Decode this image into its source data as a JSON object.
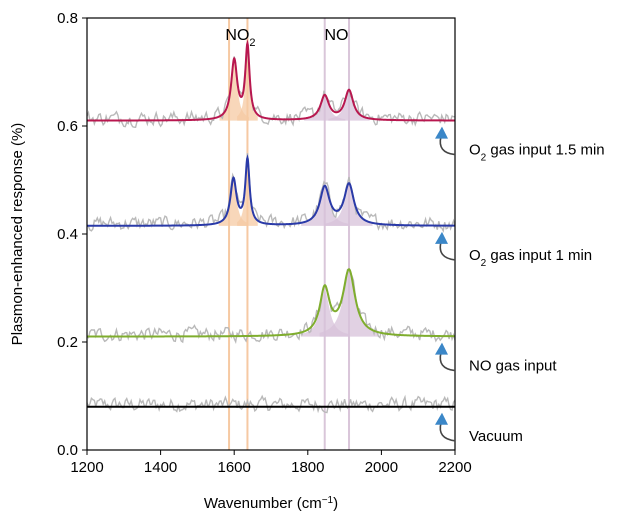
{
  "chart_data": {
    "type": "line",
    "title": "",
    "xlabel": "Wavenumber (cm",
    "xlabel_sup": "−1",
    "xlabel_end": ")",
    "ylabel": "Plasmon-enhanced response (%)",
    "xlim": [
      1200,
      2200
    ],
    "ylim": [
      0,
      0.8
    ],
    "x_ticks": [
      "1200",
      "1400",
      "1600",
      "1800",
      "2000",
      "2200"
    ],
    "y_ticks": [
      "0.0",
      "0.2",
      "0.4",
      "0.6",
      "0.8"
    ],
    "grid": false,
    "peak_labels": [
      {
        "main": "NO",
        "sub": "2",
        "x": 1617
      },
      {
        "main": "NO",
        "sub": "",
        "x": 1878
      }
    ],
    "reference_lines": [
      {
        "x": 1586,
        "color": "#f6c9a3"
      },
      {
        "x": 1636,
        "color": "#f6c9a3"
      },
      {
        "x": 1846,
        "color": "#d9c6d9"
      },
      {
        "x": 1912,
        "color": "#d9c6d9"
      }
    ],
    "series": [
      {
        "label": "Vacuum",
        "label_sub": "",
        "label_suffix": "",
        "color": "#000000",
        "baseline": 0.08,
        "peaks": []
      },
      {
        "label": "NO gas input",
        "label_sub": "",
        "label_suffix": "",
        "color": "#7fad2e",
        "baseline": 0.21,
        "peaks": [
          {
            "center": 1846,
            "height": 0.085,
            "width": 16,
            "fill": "#d7c1d9"
          },
          {
            "center": 1912,
            "height": 0.12,
            "width": 20,
            "fill": "#d7c1d9"
          }
        ]
      },
      {
        "label": "O",
        "label_sub": "2",
        "label_suffix": " gas input 1 min",
        "color": "#2a3aa8",
        "baseline": 0.415,
        "peaks": [
          {
            "center": 1598,
            "height": 0.085,
            "width": 10,
            "fill": "#f6c9a3"
          },
          {
            "center": 1636,
            "height": 0.12,
            "width": 7,
            "fill": "#f6c9a3"
          },
          {
            "center": 1846,
            "height": 0.07,
            "width": 16,
            "fill": "#d7c1d9"
          },
          {
            "center": 1912,
            "height": 0.075,
            "width": 16,
            "fill": "#d7c1d9"
          }
        ]
      },
      {
        "label": "O",
        "label_sub": "2",
        "label_suffix": " gas input 1.5 min",
        "color": "#b8174f",
        "baseline": 0.61,
        "peaks": [
          {
            "center": 1600,
            "height": 0.11,
            "width": 10,
            "fill": "#f6c9a3"
          },
          {
            "center": 1636,
            "height": 0.135,
            "width": 7,
            "fill": "#f6c9a3"
          },
          {
            "center": 1846,
            "height": 0.045,
            "width": 14,
            "fill": "#d7c1d9"
          },
          {
            "center": 1912,
            "height": 0.055,
            "width": 14,
            "fill": "#d7c1d9"
          }
        ]
      }
    ]
  }
}
